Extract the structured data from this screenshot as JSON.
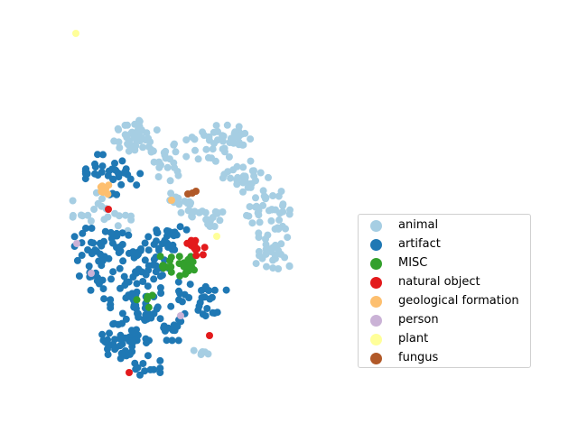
{
  "chart_data": {
    "type": "scatter",
    "title": "",
    "xlabel": "",
    "ylabel": "",
    "axes_visible": false,
    "grid": false,
    "legend_position": "center-right",
    "series": [
      {
        "name": "animal",
        "color": "#a6cee3",
        "clusters": [
          {
            "cx": 150,
            "cy": 152,
            "rx": 22,
            "ry": 18,
            "n": 45
          },
          {
            "cx": 190,
            "cy": 180,
            "rx": 18,
            "ry": 20,
            "n": 20
          },
          {
            "cx": 230,
            "cy": 160,
            "rx": 22,
            "ry": 20,
            "n": 25
          },
          {
            "cx": 262,
            "cy": 152,
            "rx": 14,
            "ry": 16,
            "n": 20
          },
          {
            "cx": 270,
            "cy": 195,
            "rx": 25,
            "ry": 20,
            "n": 30
          },
          {
            "cx": 300,
            "cy": 235,
            "rx": 25,
            "ry": 22,
            "n": 35
          },
          {
            "cx": 303,
            "cy": 280,
            "rx": 18,
            "ry": 20,
            "n": 30
          },
          {
            "cx": 228,
            "cy": 238,
            "rx": 18,
            "ry": 12,
            "n": 22
          },
          {
            "cx": 195,
            "cy": 225,
            "rx": 15,
            "ry": 10,
            "n": 12
          },
          {
            "cx": 100,
            "cy": 230,
            "rx": 18,
            "ry": 15,
            "n": 15
          },
          {
            "cx": 130,
            "cy": 245,
            "rx": 14,
            "ry": 10,
            "n": 8
          },
          {
            "cx": 225,
            "cy": 390,
            "rx": 14,
            "ry": 8,
            "n": 6
          }
        ]
      },
      {
        "name": "artifact",
        "color": "#1f78b4",
        "clusters": [
          {
            "cx": 125,
            "cy": 192,
            "rx": 28,
            "ry": 22,
            "n": 35
          },
          {
            "cx": 115,
            "cy": 280,
            "rx": 30,
            "ry": 25,
            "n": 45
          },
          {
            "cx": 160,
            "cy": 285,
            "rx": 25,
            "ry": 25,
            "n": 40
          },
          {
            "cx": 185,
            "cy": 265,
            "rx": 20,
            "ry": 15,
            "n": 20
          },
          {
            "cx": 160,
            "cy": 345,
            "rx": 35,
            "ry": 30,
            "n": 70
          },
          {
            "cx": 135,
            "cy": 378,
            "rx": 25,
            "ry": 18,
            "n": 35
          },
          {
            "cx": 225,
            "cy": 335,
            "rx": 25,
            "ry": 20,
            "n": 30
          },
          {
            "cx": 160,
            "cy": 405,
            "rx": 16,
            "ry": 10,
            "n": 12
          },
          {
            "cx": 110,
            "cy": 315,
            "rx": 12,
            "ry": 15,
            "n": 10
          }
        ]
      },
      {
        "name": "MISC",
        "color": "#33a02c",
        "clusters": [
          {
            "cx": 197,
            "cy": 295,
            "rx": 18,
            "ry": 10,
            "n": 25
          },
          {
            "cx": 160,
            "cy": 330,
            "rx": 10,
            "ry": 12,
            "n": 5
          }
        ]
      },
      {
        "name": "natural object",
        "color": "#e31a1c",
        "clusters": [
          {
            "cx": 217,
            "cy": 275,
            "rx": 9,
            "ry": 9,
            "n": 14
          }
        ],
        "points": [
          [
            120,
            232
          ],
          [
            232,
            372
          ],
          [
            143,
            413
          ]
        ]
      },
      {
        "name": "geological formation",
        "color": "#fdbf6f",
        "clusters": [
          {
            "cx": 116,
            "cy": 210,
            "rx": 5,
            "ry": 8,
            "n": 8
          }
        ],
        "points": [
          [
            190,
            222
          ]
        ]
      },
      {
        "name": "person",
        "color": "#cab2d6",
        "points": [
          [
            85,
            270
          ],
          [
            101,
            303
          ],
          [
            200,
            350
          ]
        ]
      },
      {
        "name": "plant",
        "color": "#ffff99",
        "points": [
          [
            84,
            37
          ],
          [
            240,
            262
          ]
        ]
      },
      {
        "name": "fungus",
        "color": "#b15928",
        "points": [
          [
            208,
            215
          ],
          [
            213,
            214
          ],
          [
            217,
            212
          ]
        ]
      }
    ]
  },
  "legend": {
    "items": [
      {
        "label": "animal",
        "color": "#a6cee3"
      },
      {
        "label": "artifact",
        "color": "#1f78b4"
      },
      {
        "label": "MISC",
        "color": "#33a02c"
      },
      {
        "label": "natural object",
        "color": "#e31a1c"
      },
      {
        "label": "geological formation",
        "color": "#fdbf6f"
      },
      {
        "label": "person",
        "color": "#cab2d6"
      },
      {
        "label": "plant",
        "color": "#ffff99"
      },
      {
        "label": "fungus",
        "color": "#b15928"
      }
    ]
  }
}
